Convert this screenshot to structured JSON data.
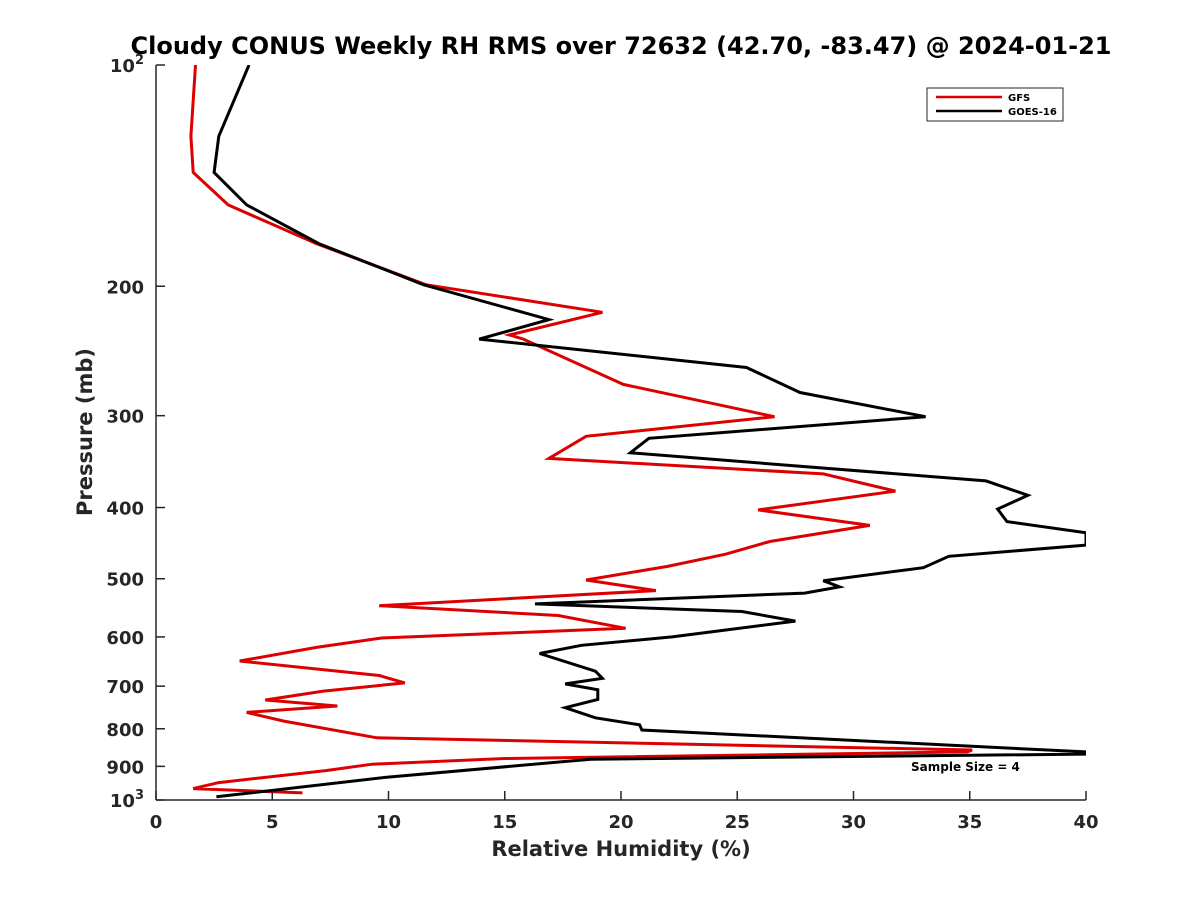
{
  "chart_data": {
    "type": "line",
    "title": "Cloudy CONUS Weekly RH RMS over 72632 (42.70, -83.47) @ 2024-01-21",
    "xlabel": "Relative Humidity (%)",
    "ylabel": "Pressure (mb)",
    "xlim": [
      0,
      40
    ],
    "ylim": [
      100,
      1000
    ],
    "yscale": "log",
    "y_reversed": false,
    "x_ticks": [
      "0",
      "5",
      "10",
      "15",
      "20",
      "25",
      "30",
      "35",
      "40"
    ],
    "y_ticks": [
      {
        "value": 100,
        "base": "10",
        "exp": "2"
      },
      {
        "value": 200,
        "label": "200"
      },
      {
        "value": 300,
        "label": "300"
      },
      {
        "value": 400,
        "label": "400"
      },
      {
        "value": 500,
        "label": "500"
      },
      {
        "value": 600,
        "label": "600"
      },
      {
        "value": 700,
        "label": "700"
      },
      {
        "value": 800,
        "label": "800"
      },
      {
        "value": 900,
        "label": "900"
      },
      {
        "value": 1000,
        "base": "10",
        "exp": "3"
      }
    ],
    "grid": false,
    "legend_position": "top-right",
    "annotation": "Sample Size = 4",
    "series": [
      {
        "name": "GFS",
        "color": "#dd0000",
        "points": [
          [
            1.7,
            100
          ],
          [
            1.5,
            125
          ],
          [
            1.6,
            140
          ],
          [
            3.1,
            155
          ],
          [
            6.9,
            175
          ],
          [
            11.6,
            199
          ],
          [
            19.2,
            217
          ],
          [
            15.2,
            233
          ],
          [
            15.8,
            236
          ],
          [
            20.1,
            272
          ],
          [
            26.6,
            301
          ],
          [
            18.5,
            320
          ],
          [
            16.9,
            343
          ],
          [
            28.7,
            360
          ],
          [
            31.8,
            380
          ],
          [
            25.9,
            403
          ],
          [
            30.7,
            423
          ],
          [
            26.4,
            445
          ],
          [
            24.5,
            463
          ],
          [
            22.0,
            481
          ],
          [
            18.5,
            502
          ],
          [
            21.5,
            519
          ],
          [
            9.6,
            544
          ],
          [
            17.3,
            561
          ],
          [
            20.2,
            584
          ],
          [
            9.7,
            602
          ],
          [
            6.9,
            620
          ],
          [
            3.6,
            647
          ],
          [
            9.6,
            677
          ],
          [
            10.7,
            693
          ],
          [
            7.2,
            711
          ],
          [
            4.7,
            731
          ],
          [
            7.8,
            745
          ],
          [
            3.9,
            760
          ],
          [
            5.5,
            781
          ],
          [
            9.5,
            823
          ],
          [
            35.1,
            855
          ],
          [
            34.9,
            860
          ],
          [
            15.0,
            878
          ],
          [
            9.3,
            894
          ],
          [
            7.3,
            912
          ],
          [
            2.7,
            947
          ],
          [
            1.6,
            965
          ],
          [
            6.3,
            978
          ]
        ]
      },
      {
        "name": "GOES-16",
        "color": "#000000",
        "points": [
          [
            4.0,
            100
          ],
          [
            2.7,
            125
          ],
          [
            2.5,
            140
          ],
          [
            3.9,
            155
          ],
          [
            7.0,
            175
          ],
          [
            11.5,
            199
          ],
          [
            16.9,
            222
          ],
          [
            13.9,
            236
          ],
          [
            25.4,
            258
          ],
          [
            27.7,
            279
          ],
          [
            33.1,
            301
          ],
          [
            21.2,
            322
          ],
          [
            20.4,
            337
          ],
          [
            35.7,
            368
          ],
          [
            37.5,
            385
          ],
          [
            36.2,
            402
          ],
          [
            36.6,
            418
          ],
          [
            40.0,
            433
          ],
          [
            40.0,
            450
          ],
          [
            34.1,
            466
          ],
          [
            33.0,
            483
          ],
          [
            28.7,
            503
          ],
          [
            29.4,
            513
          ],
          [
            27.9,
            523
          ],
          [
            16.3,
            541
          ],
          [
            25.2,
            554
          ],
          [
            27.5,
            571
          ],
          [
            22.2,
            600
          ],
          [
            18.3,
            616
          ],
          [
            16.5,
            632
          ],
          [
            18.9,
            668
          ],
          [
            19.2,
            683
          ],
          [
            17.6,
            695
          ],
          [
            19.0,
            708
          ],
          [
            19.0,
            730
          ],
          [
            17.6,
            749
          ],
          [
            18.9,
            773
          ],
          [
            20.8,
            790
          ],
          [
            20.9,
            803
          ],
          [
            40.0,
            860
          ],
          [
            40.0,
            866
          ],
          [
            18.7,
            880
          ],
          [
            9.8,
            932
          ],
          [
            2.6,
            990
          ]
        ]
      }
    ]
  }
}
